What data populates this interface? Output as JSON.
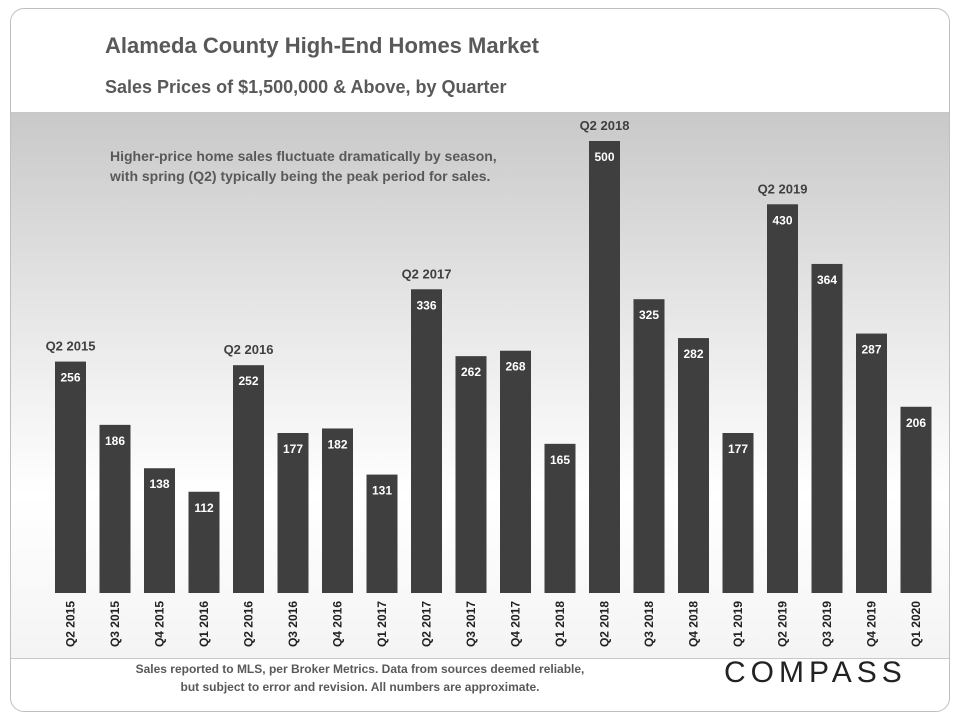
{
  "header": {
    "title": "Alameda County High-End Homes Market",
    "subtitle": "Sales Prices of $1,500,000 & Above, by Quarter"
  },
  "annotation": {
    "line1": "Higher-price home sales fluctuate dramatically by season,",
    "line2": "with spring (Q2) typically being the peak period for sales."
  },
  "footer": {
    "line1": "Sales reported to MLS, per Broker Metrics. Data from sources deemed reliable,",
    "line2": "but subject to error and revision. All numbers are approximate.",
    "brand": "COMPASS"
  },
  "chart_data": {
    "type": "bar",
    "title": "Alameda County High-End Homes Market",
    "subtitle": "Sales Prices of $1,500,000 & Above, by Quarter",
    "categories": [
      "Q2 2015",
      "Q3 2015",
      "Q4 2015",
      "Q1 2016",
      "Q2 2016",
      "Q3 2016",
      "Q4 2016",
      "Q1 2017",
      "Q2 2017",
      "Q3 2017",
      "Q4 2017",
      "Q1 2018",
      "Q2 2018",
      "Q3 2018",
      "Q4 2018",
      "Q1 2019",
      "Q2 2019",
      "Q3 2019",
      "Q4 2019",
      "Q1 2020"
    ],
    "values": [
      256,
      186,
      138,
      112,
      252,
      177,
      182,
      131,
      336,
      262,
      268,
      165,
      500,
      325,
      282,
      177,
      430,
      364,
      287,
      206
    ],
    "data_labels": true,
    "peak_labels": [
      {
        "category": "Q2 2015",
        "text": "Q2 2015"
      },
      {
        "category": "Q2 2016",
        "text": "Q2 2016"
      },
      {
        "category": "Q2 2017",
        "text": "Q2 2017"
      },
      {
        "category": "Q2 2018",
        "text": "Q2 2018"
      },
      {
        "category": "Q2 2019",
        "text": "Q2 2019"
      }
    ],
    "xlabel": "",
    "ylabel": "",
    "ylim": [
      0,
      500
    ],
    "grid": false,
    "bar_color": "#3f3f3f"
  }
}
